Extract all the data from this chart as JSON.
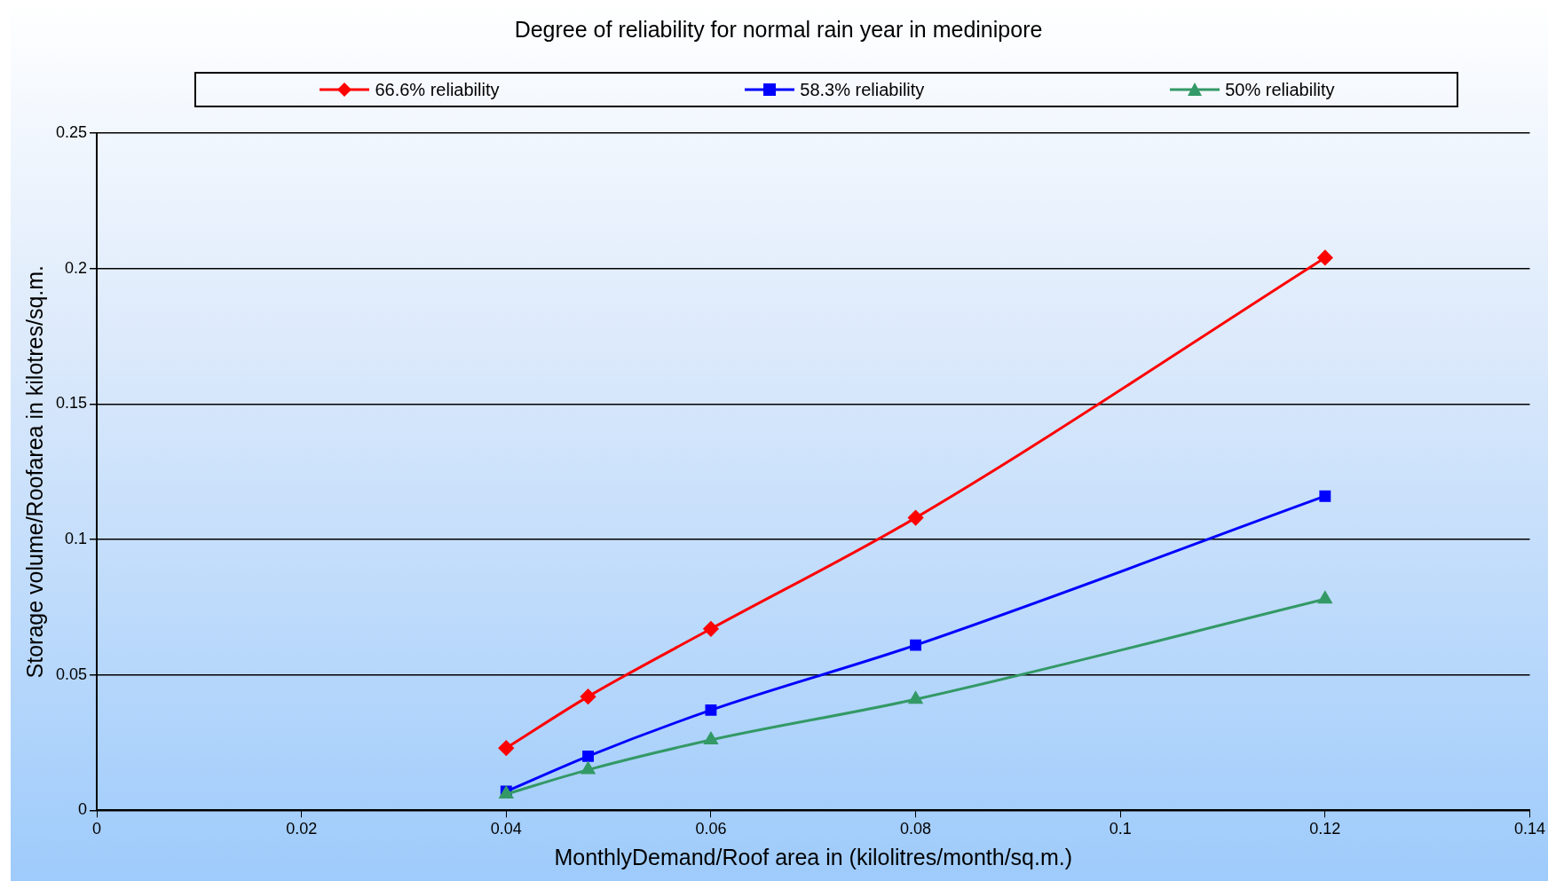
{
  "chart_data": {
    "type": "line",
    "title": "Degree of reliability for normal rain year in medinipore",
    "xlabel": "MonthlyDemand/Roof area in (kilolitres/month/sq.m.)",
    "ylabel": "Storage volume/Roofarea in kilotres/sq.m.",
    "x": [
      0.04,
      0.048,
      0.06,
      0.08,
      0.12
    ],
    "series": [
      {
        "name": "66.6% reliability",
        "color": "#ff0000",
        "marker": "diamond",
        "values": [
          0.023,
          0.042,
          0.067,
          0.108,
          0.204
        ]
      },
      {
        "name": "58.3% reliability",
        "color": "#0000ff",
        "marker": "square",
        "values": [
          0.007,
          0.02,
          0.037,
          0.061,
          0.116
        ]
      },
      {
        "name": "50% reliability",
        "color": "#339966",
        "marker": "triangle",
        "values": [
          0.006,
          0.015,
          0.026,
          0.041,
          0.078
        ]
      }
    ],
    "xlim": [
      0,
      0.14
    ],
    "xticks": [
      0,
      0.02,
      0.04,
      0.06,
      0.08,
      0.1,
      0.12,
      0.14
    ],
    "ylim": [
      0,
      0.25
    ],
    "yticks": [
      0,
      0.05,
      0.1,
      0.15,
      0.2,
      0.25
    ],
    "grid": "y",
    "legend": "top",
    "line_style": "solid"
  }
}
